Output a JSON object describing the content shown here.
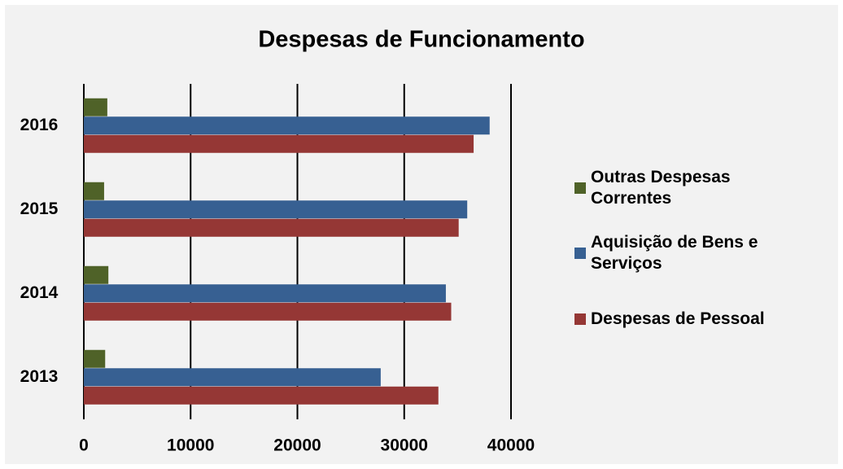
{
  "chart_data": {
    "type": "hbar",
    "title": "Despesas de Funcionamento",
    "categories": [
      "2013",
      "2014",
      "2015",
      "2016"
    ],
    "series": [
      {
        "name": "Despesas de Pessoal",
        "color": "#953735",
        "values": [
          33200,
          34400,
          35100,
          36500
        ]
      },
      {
        "name": "Aquisição de Bens e Serviços",
        "color": "#376092",
        "values": [
          27800,
          33900,
          35900,
          38000
        ]
      },
      {
        "name": "Outras Despesas Correntes",
        "color": "#4f6228",
        "values": [
          2000,
          2300,
          1900,
          2200
        ]
      }
    ],
    "xlim": [
      0,
      40000
    ],
    "xticks": [
      0,
      10000,
      20000,
      30000,
      40000
    ],
    "grid": true,
    "legend": "right"
  }
}
